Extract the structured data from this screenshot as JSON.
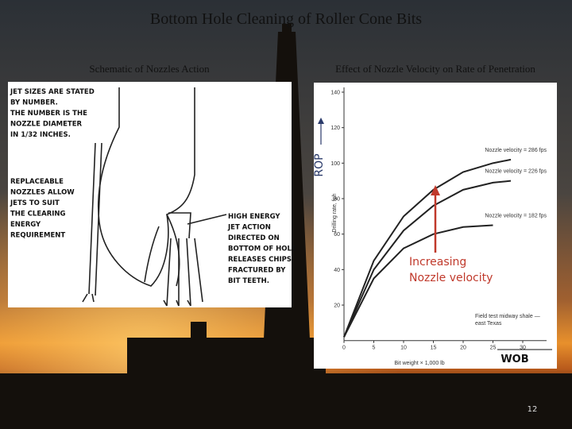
{
  "slide": {
    "title": "Bottom Hole Cleaning of Roller Cone Bits",
    "left_caption": "Schematic of Nozzles Action",
    "right_caption": "Effect of Nozzle Velocity on Rate of Penetration",
    "page_number": "12"
  },
  "schematic": {
    "notes": [
      {
        "lines": [
          "JET SIZES ARE STATED",
          "BY NUMBER.",
          "THE NUMBER IS THE",
          "NOZZLE DIAMETER",
          "IN 1/32 INCHES."
        ]
      },
      {
        "lines": [
          "REPLACEABLE",
          "NOZZLES ALLOW",
          "JETS TO SUIT",
          "THE CLEARING",
          "ENERGY",
          "REQUIREMENT"
        ]
      },
      {
        "lines": [
          "HIGH ENERGY",
          "JET ACTION",
          "DIRECTED ON",
          "BOTTOM OF HOLE",
          "RELEASES CHIPS",
          "FRACTURED BY",
          "BIT TEETH."
        ]
      }
    ]
  },
  "chart_data": {
    "type": "line",
    "x_label": "Bit weight × 1,000 lb",
    "y_label": "Drilling rate, fph",
    "y_tag": "ROP",
    "x_tag": "WOB",
    "annotation": [
      "Increasing",
      "Nozzle velocity"
    ],
    "note": [
      "Field test midway shale —",
      "east Texas"
    ],
    "x": [
      0,
      5,
      10,
      15,
      20,
      25,
      28
    ],
    "series": [
      {
        "name": "Nozzle velocity = 286 fps",
        "color": "#222222",
        "values": [
          2,
          45,
          70,
          85,
          95,
          100,
          102
        ]
      },
      {
        "name": "Nozzle velocity = 226 fps",
        "color": "#222222",
        "values": [
          2,
          40,
          62,
          76,
          85,
          89,
          90
        ]
      },
      {
        "name": "Nozzle velocity = 182 fps",
        "color": "#222222",
        "values": [
          2,
          35,
          52,
          60,
          64,
          65,
          null
        ]
      }
    ],
    "xlim": [
      0,
      34
    ],
    "ylim": [
      0,
      140
    ],
    "xticks": [
      0,
      5,
      10,
      15,
      20,
      25,
      30
    ],
    "yticks": [
      20,
      40,
      60,
      80,
      100,
      120,
      140
    ],
    "annotation_color": "#c0392b"
  }
}
